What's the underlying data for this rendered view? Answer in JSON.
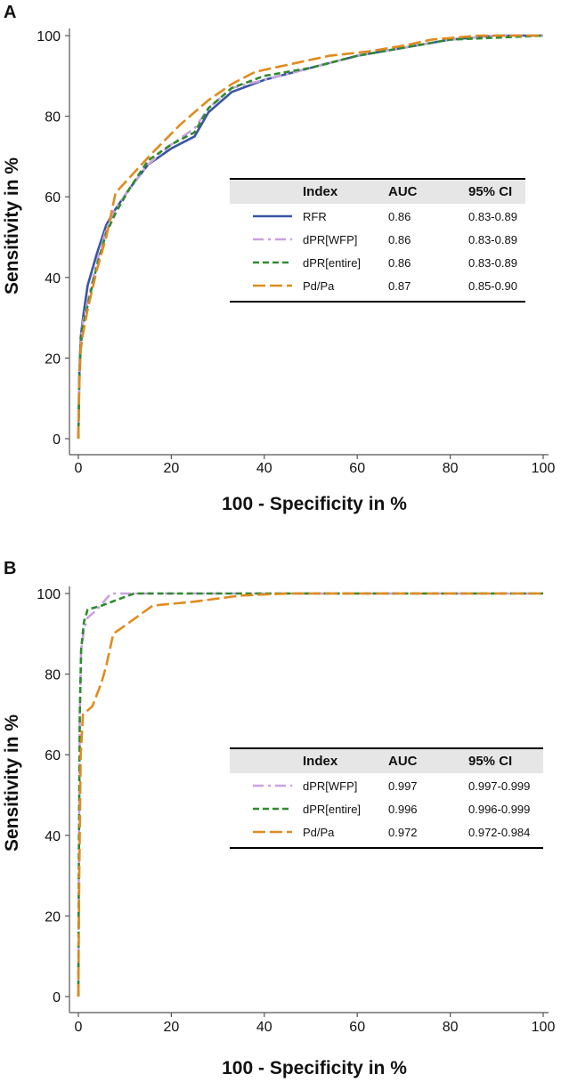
{
  "chart_data": [
    {
      "type": "line",
      "panel": "A",
      "xlabel": "100 - Specificity in %",
      "ylabel": "Sensitivity in %",
      "xlim": [
        0,
        100
      ],
      "ylim": [
        0,
        100
      ],
      "xticks": [
        "0",
        "20",
        "40",
        "60",
        "80",
        "100"
      ],
      "yticks": [
        "0",
        "20",
        "40",
        "60",
        "80",
        "100"
      ],
      "legend": {
        "headers": [
          "Index",
          "AUC",
          "95% CI"
        ],
        "rows": [
          {
            "index": "RFR",
            "auc": "0.86",
            "ci": "0.83-0.89"
          },
          {
            "index": "dPR[WFP]",
            "auc": "0.86",
            "ci": "0.83-0.89"
          },
          {
            "index": "dPR[entire]",
            "auc": "0.86",
            "ci": "0.83-0.89"
          },
          {
            "index": "Pd/Pa",
            "auc": "0.87",
            "ci": "0.85-0.90"
          }
        ]
      },
      "series": [
        {
          "name": "RFR",
          "color": "#3a55a4",
          "dash": "solid",
          "points": [
            [
              0,
              0
            ],
            [
              0.2,
              15
            ],
            [
              0.5,
              25
            ],
            [
              1,
              30
            ],
            [
              2,
              38
            ],
            [
              4,
              46
            ],
            [
              6,
              53
            ],
            [
              8,
              57
            ],
            [
              11,
              62
            ],
            [
              15,
              68
            ],
            [
              20,
              72
            ],
            [
              25,
              75
            ],
            [
              28,
              81
            ],
            [
              33,
              86
            ],
            [
              40,
              89
            ],
            [
              50,
              92
            ],
            [
              60,
              95
            ],
            [
              70,
              97
            ],
            [
              80,
              99
            ],
            [
              90,
              100
            ],
            [
              100,
              100
            ]
          ]
        },
        {
          "name": "dPR[WFP]",
          "color": "#c8a2e0",
          "dash": "dashdot",
          "points": [
            [
              0,
              0
            ],
            [
              0.2,
              14
            ],
            [
              0.5,
              24
            ],
            [
              1,
              29
            ],
            [
              2,
              34
            ],
            [
              4,
              44
            ],
            [
              6,
              52
            ],
            [
              8,
              57
            ],
            [
              11,
              62
            ],
            [
              15,
              68
            ],
            [
              20,
              73
            ],
            [
              25,
              77
            ],
            [
              28,
              82
            ],
            [
              33,
              87
            ],
            [
              40,
              89
            ],
            [
              50,
              92
            ],
            [
              60,
              95
            ],
            [
              70,
              97
            ],
            [
              80,
              99
            ],
            [
              90,
              100
            ],
            [
              100,
              100
            ]
          ]
        },
        {
          "name": "dPR[entire]",
          "color": "#2e8b2e",
          "dash": "dash",
          "points": [
            [
              0,
              0
            ],
            [
              0.2,
              14
            ],
            [
              0.5,
              23
            ],
            [
              1,
              28
            ],
            [
              2,
              33
            ],
            [
              4,
              43
            ],
            [
              6,
              51
            ],
            [
              8,
              56
            ],
            [
              11,
              62
            ],
            [
              15,
              69
            ],
            [
              20,
              73
            ],
            [
              25,
              76
            ],
            [
              28,
              82
            ],
            [
              33,
              87
            ],
            [
              40,
              90
            ],
            [
              50,
              92
            ],
            [
              60,
              95
            ],
            [
              70,
              97
            ],
            [
              80,
              99
            ],
            [
              90,
              99.5
            ],
            [
              100,
              100
            ]
          ]
        },
        {
          "name": "Pd/Pa",
          "color": "#e08b1e",
          "dash": "longdash",
          "points": [
            [
              0,
              0
            ],
            [
              0.2,
              13
            ],
            [
              0.5,
              22
            ],
            [
              1,
              26
            ],
            [
              2,
              32
            ],
            [
              4,
              42
            ],
            [
              6,
              50
            ],
            [
              8,
              61
            ],
            [
              12,
              66
            ],
            [
              16,
              71
            ],
            [
              22,
              78
            ],
            [
              28,
              84
            ],
            [
              33,
              88
            ],
            [
              38,
              91
            ],
            [
              46,
              93
            ],
            [
              54,
              95
            ],
            [
              62,
              96
            ],
            [
              70,
              97.5
            ],
            [
              76,
              99
            ],
            [
              86,
              100
            ],
            [
              100,
              100
            ]
          ]
        }
      ]
    },
    {
      "type": "line",
      "panel": "B",
      "xlabel": "100 - Specificity in %",
      "ylabel": "Sensitivity in %",
      "xlim": [
        0,
        100
      ],
      "ylim": [
        0,
        100
      ],
      "xticks": [
        "0",
        "20",
        "40",
        "60",
        "80",
        "100"
      ],
      "yticks": [
        "0",
        "20",
        "40",
        "60",
        "80",
        "100"
      ],
      "legend": {
        "headers": [
          "Index",
          "AUC",
          "95% CI"
        ],
        "rows": [
          {
            "index": "dPR[WFP]",
            "auc": "0.997",
            "ci": "0.997-0.999"
          },
          {
            "index": "dPR[entire]",
            "auc": "0.996",
            "ci": "0.996-0.999"
          },
          {
            "index": "Pd/Pa",
            "auc": "0.972",
            "ci": "0.972-0.984"
          }
        ]
      },
      "series": [
        {
          "name": "dPR[WFP]",
          "color": "#c8a2e0",
          "dash": "dashdot",
          "points": [
            [
              0,
              0
            ],
            [
              0.1,
              30
            ],
            [
              0.3,
              70
            ],
            [
              0.6,
              86
            ],
            [
              1.2,
              91
            ],
            [
              2,
              94
            ],
            [
              4,
              96
            ],
            [
              7,
              100
            ],
            [
              12,
              100
            ],
            [
              100,
              100
            ]
          ]
        },
        {
          "name": "dPR[entire]",
          "color": "#2e8b2e",
          "dash": "dash",
          "points": [
            [
              0,
              0
            ],
            [
              0.1,
              30
            ],
            [
              0.3,
              70
            ],
            [
              0.6,
              86
            ],
            [
              1.2,
              93
            ],
            [
              2,
              96
            ],
            [
              5,
              97
            ],
            [
              12,
              100
            ],
            [
              100,
              100
            ]
          ]
        },
        {
          "name": "Pd/Pa",
          "color": "#e08b1e",
          "dash": "longdash",
          "points": [
            [
              0,
              0
            ],
            [
              0.2,
              30
            ],
            [
              0.5,
              60
            ],
            [
              1,
              70
            ],
            [
              3,
              72
            ],
            [
              5,
              78
            ],
            [
              6,
              82
            ],
            [
              7.5,
              90
            ],
            [
              10,
              92
            ],
            [
              16,
              97
            ],
            [
              25,
              98
            ],
            [
              35,
              99.5
            ],
            [
              45,
              100
            ],
            [
              100,
              100
            ]
          ]
        }
      ]
    }
  ]
}
